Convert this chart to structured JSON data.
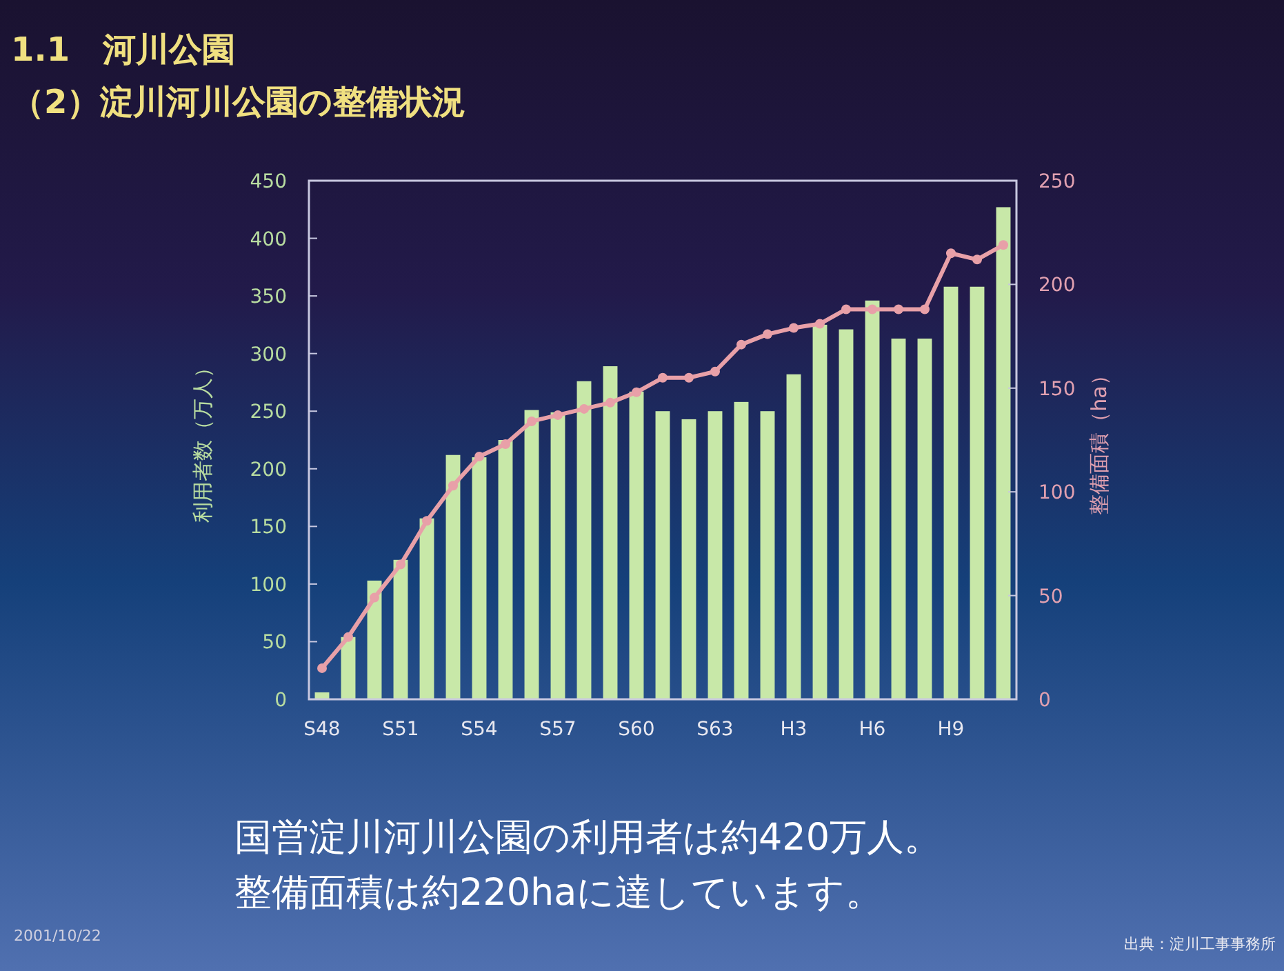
{
  "chart_data": {
    "type": "bar",
    "title": "1.1　河川公園",
    "subtitle": "（2）淀川河川公園の整備状況",
    "ylabel": "利用者数（万人）",
    "y2label": "整備面積（ha）",
    "categories": [
      "S48",
      null,
      null,
      "S51",
      null,
      null,
      "S54",
      null,
      null,
      "S57",
      null,
      null,
      "S60",
      null,
      null,
      "S63",
      null,
      null,
      "H3",
      null,
      null,
      "H6",
      null,
      null,
      "H9",
      null,
      null
    ],
    "series": [
      {
        "color": "#c8e8a8",
        "values": [
          6,
          54,
          103,
          121,
          157,
          212,
          210,
          225,
          251,
          249,
          276,
          289,
          267,
          250,
          243,
          250,
          258,
          250,
          282,
          325,
          321,
          346,
          313,
          313,
          358,
          358,
          427
        ]
      },
      {
        "type": "line",
        "axis": "y2",
        "color": "#e8a0a8",
        "marker": "circle",
        "line_style": "solid",
        "values": [
          15,
          30,
          49,
          65,
          86,
          103,
          117,
          123,
          134,
          137,
          140,
          143,
          148,
          155,
          155,
          158,
          171,
          176,
          179,
          181,
          188,
          188,
          188,
          188,
          215,
          212,
          219
        ]
      }
    ],
    "ylim": [
      0,
      450
    ],
    "yticks": [
      0,
      50,
      100,
      150,
      200,
      250,
      300,
      350,
      400,
      450
    ],
    "y2lim": [
      0,
      250
    ],
    "y2ticks": [
      0,
      50,
      100,
      150,
      200,
      250
    ],
    "grid": false,
    "annotations": [
      "国営淀川河川公園の利用者は約420万人。",
      "整備面積は約220haに達しています。",
      "2001/10/22",
      "出典：淀川工事事務所"
    ]
  }
}
